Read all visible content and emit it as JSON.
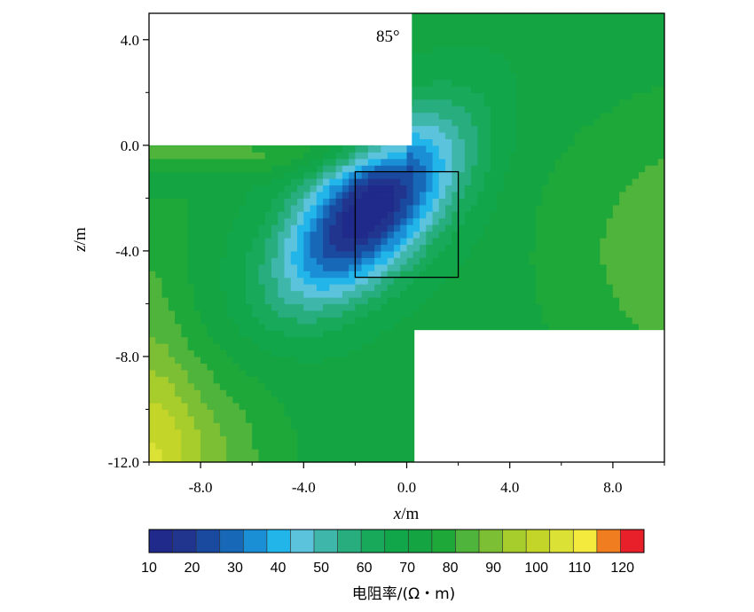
{
  "chart_data": {
    "type": "heatmap",
    "annotation": "85°",
    "xlabel_var": "x",
    "xlabel_unit": "/m",
    "ylabel_var": "z",
    "ylabel_unit": "/m",
    "xlim": [
      -10,
      10
    ],
    "ylim": [
      -12,
      5
    ],
    "x_ticks": [
      -8,
      -4,
      0,
      4,
      8
    ],
    "x_tick_labels": [
      "-8.0",
      "-4.0",
      "0.0",
      "4.0",
      "8.0"
    ],
    "y_ticks": [
      4,
      0,
      -4,
      -8,
      -12
    ],
    "y_tick_labels": [
      "4.0",
      "0.0",
      "-4.0",
      "-8.0",
      "-12.0"
    ],
    "grid": false,
    "box": {
      "x": [
        -2,
        2
      ],
      "z": [
        -5,
        -1
      ]
    },
    "blank_regions": [
      {
        "x": [
          -10,
          0.2
        ],
        "z": [
          0,
          5
        ]
      },
      {
        "x": [
          0.3,
          10
        ],
        "z": [
          -12,
          -7
        ]
      }
    ],
    "colorbar": {
      "title": "电阻率/(Ω・m)",
      "min": 10,
      "max": 125,
      "tick_values": [
        10,
        20,
        30,
        40,
        50,
        60,
        70,
        80,
        90,
        100,
        110,
        120
      ],
      "tick_labels": [
        "10",
        "20",
        "30",
        "40",
        "50",
        "60",
        "70",
        "80",
        "90",
        "100",
        "110",
        "120"
      ],
      "colors": [
        "#1f2a8a",
        "#21358e",
        "#1a4aa0",
        "#1769b8",
        "#1b8fd6",
        "#22b5ea",
        "#5cc3dc",
        "#3fb6aa",
        "#27ad7e",
        "#18a95a",
        "#12a64a",
        "#14a442",
        "#1ea83a",
        "#4fb43b",
        "#7dbf34",
        "#a6cd2c",
        "#c4d52a",
        "#dce235",
        "#f4ea3e",
        "#f07d1f",
        "#e8202a"
      ]
    },
    "minimum": {
      "x": -1.5,
      "z": -2.5,
      "value": 12
    },
    "background_value": 72
  }
}
